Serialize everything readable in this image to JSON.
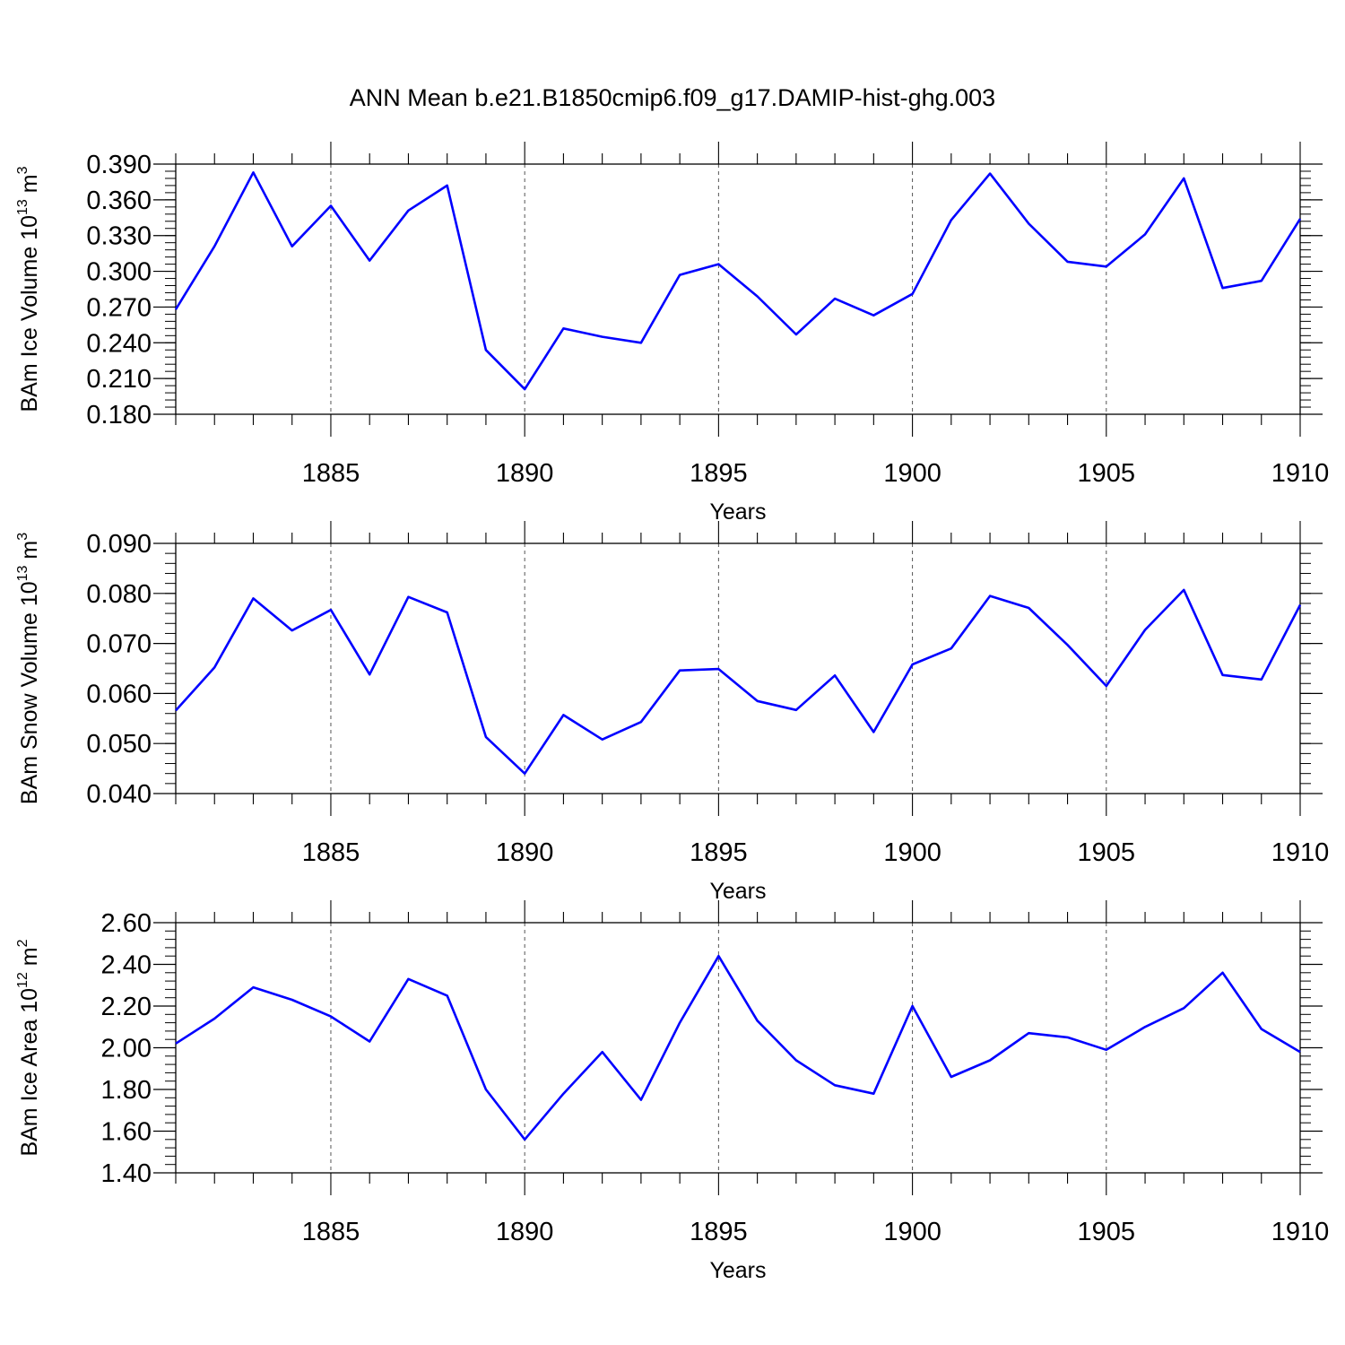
{
  "title": "ANN Mean b.e21.B1850cmip6.f09_g17.DAMIP-hist-ghg.003",
  "colors": {
    "line": "#0000ff",
    "axis": "#000000",
    "grid": "#555555"
  },
  "chart_data": [
    {
      "type": "line",
      "ylabel": {
        "text": "BAm Ice Volume 10",
        "exponent": "13",
        "unit": "m",
        "unit_exponent": "3"
      },
      "xlabel": "Years",
      "xlim": [
        1881,
        1910
      ],
      "ylim": [
        0.18,
        0.39
      ],
      "xticks": [
        1885,
        1890,
        1895,
        1900,
        1905,
        1910
      ],
      "yticks": [
        "0.180",
        "0.210",
        "0.240",
        "0.270",
        "0.300",
        "0.330",
        "0.360",
        "0.390"
      ],
      "x": [
        1881,
        1882,
        1883,
        1884,
        1885,
        1886,
        1887,
        1888,
        1889,
        1890,
        1891,
        1892,
        1893,
        1894,
        1895,
        1896,
        1897,
        1898,
        1899,
        1900,
        1901,
        1902,
        1903,
        1904,
        1905,
        1906,
        1907,
        1908,
        1909,
        1910
      ],
      "series": [
        {
          "values": [
            0.268,
            0.321,
            0.383,
            0.321,
            0.355,
            0.309,
            0.351,
            0.372,
            0.234,
            0.201,
            0.252,
            0.245,
            0.24,
            0.297,
            0.306,
            0.279,
            0.247,
            0.277,
            0.263,
            0.281,
            0.343,
            0.382,
            0.34,
            0.308,
            0.304,
            0.331,
            0.378,
            0.286,
            0.292,
            0.344
          ]
        }
      ]
    },
    {
      "type": "line",
      "ylabel": {
        "text": "BAm Snow Volume 10",
        "exponent": "13",
        "unit": "m",
        "unit_exponent": "3"
      },
      "xlabel": "Years",
      "xlim": [
        1881,
        1910
      ],
      "ylim": [
        0.04,
        0.09
      ],
      "xticks": [
        1885,
        1890,
        1895,
        1900,
        1905,
        1910
      ],
      "yticks": [
        "0.040",
        "0.050",
        "0.060",
        "0.070",
        "0.080",
        "0.090"
      ],
      "x": [
        1881,
        1882,
        1883,
        1884,
        1885,
        1886,
        1887,
        1888,
        1889,
        1890,
        1891,
        1892,
        1893,
        1894,
        1895,
        1896,
        1897,
        1898,
        1899,
        1900,
        1901,
        1902,
        1903,
        1904,
        1905,
        1906,
        1907,
        1908,
        1909,
        1910
      ],
      "series": [
        {
          "values": [
            0.0566,
            0.0652,
            0.079,
            0.0726,
            0.0767,
            0.0638,
            0.0793,
            0.0762,
            0.0513,
            0.044,
            0.0557,
            0.0508,
            0.0543,
            0.0646,
            0.0649,
            0.0585,
            0.0567,
            0.0636,
            0.0523,
            0.0658,
            0.069,
            0.0795,
            0.0771,
            0.0697,
            0.0615,
            0.0727,
            0.0807,
            0.0637,
            0.0628,
            0.0777
          ]
        }
      ]
    },
    {
      "type": "line",
      "ylabel": {
        "text": "BAm Ice Area 10",
        "exponent": "12",
        "unit": "m",
        "unit_exponent": "2"
      },
      "xlabel": "Years",
      "xlim": [
        1881,
        1910
      ],
      "ylim": [
        1.4,
        2.6
      ],
      "xticks": [
        1885,
        1890,
        1895,
        1900,
        1905,
        1910
      ],
      "yticks": [
        "1.40",
        "1.60",
        "1.80",
        "2.00",
        "2.20",
        "2.40",
        "2.60"
      ],
      "x": [
        1881,
        1882,
        1883,
        1884,
        1885,
        1886,
        1887,
        1888,
        1889,
        1890,
        1891,
        1892,
        1893,
        1894,
        1895,
        1896,
        1897,
        1898,
        1899,
        1900,
        1901,
        1902,
        1903,
        1904,
        1905,
        1906,
        1907,
        1908,
        1909,
        1910
      ],
      "series": [
        {
          "values": [
            2.02,
            2.14,
            2.29,
            2.23,
            2.15,
            2.03,
            2.33,
            2.25,
            1.8,
            1.56,
            1.78,
            1.98,
            1.75,
            2.12,
            2.44,
            2.13,
            1.94,
            1.82,
            1.78,
            2.2,
            1.86,
            1.94,
            2.07,
            2.05,
            1.99,
            2.1,
            2.19,
            2.36,
            2.09,
            1.98
          ]
        }
      ]
    }
  ]
}
